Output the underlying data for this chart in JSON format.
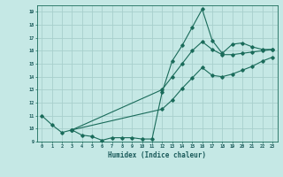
{
  "title": "",
  "xlabel": "Humidex (Indice chaleur)",
  "ylabel": "",
  "bg_color": "#c5e8e5",
  "grid_color": "#a8d0cc",
  "line_color": "#1a6b5a",
  "xlim": [
    -0.5,
    23.5
  ],
  "ylim": [
    9,
    19.5
  ],
  "xticks": [
    0,
    1,
    2,
    3,
    4,
    5,
    6,
    7,
    8,
    9,
    10,
    11,
    12,
    13,
    14,
    15,
    16,
    17,
    18,
    19,
    20,
    21,
    22,
    23
  ],
  "yticks": [
    9,
    10,
    11,
    12,
    13,
    14,
    15,
    16,
    17,
    18,
    19
  ],
  "series1_x": [
    0,
    1,
    2,
    3,
    4,
    5,
    6,
    7,
    8,
    9,
    10,
    11,
    12,
    13,
    14,
    15,
    16,
    17,
    18,
    19,
    20,
    21,
    22,
    23
  ],
  "series1_y": [
    11,
    10.3,
    9.7,
    9.9,
    9.5,
    9.4,
    9.1,
    9.3,
    9.3,
    9.3,
    9.2,
    9.2,
    12.8,
    15.2,
    16.4,
    17.8,
    19.2,
    16.8,
    15.8,
    16.5,
    16.6,
    16.3,
    16.1,
    16.1
  ],
  "series2_x": [
    3,
    12,
    13,
    14,
    15,
    16,
    17,
    18,
    19,
    20,
    21,
    22,
    23
  ],
  "series2_y": [
    9.9,
    13.0,
    14.0,
    15.0,
    16.0,
    16.7,
    16.1,
    15.7,
    15.7,
    15.8,
    15.9,
    16.0,
    16.1
  ],
  "series3_x": [
    3,
    12,
    13,
    14,
    15,
    16,
    17,
    18,
    19,
    20,
    21,
    22,
    23
  ],
  "series3_y": [
    9.9,
    11.5,
    12.2,
    13.1,
    13.9,
    14.7,
    14.1,
    14.0,
    14.2,
    14.5,
    14.8,
    15.2,
    15.5
  ]
}
